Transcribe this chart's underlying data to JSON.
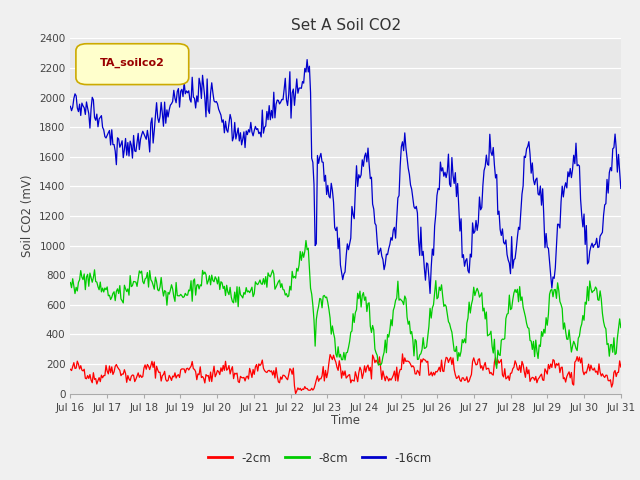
{
  "title": "Set A Soil CO2",
  "ylabel": "Soil CO2 (mV)",
  "xlabel": "Time",
  "legend_label": "TA_soilco2",
  "ylim": [
    0,
    2400
  ],
  "series_labels": [
    "-2cm",
    "-8cm",
    "-16cm"
  ],
  "series_colors": [
    "#ff0000",
    "#00cc00",
    "#0000cc"
  ],
  "fig_facecolor": "#f0f0f0",
  "plot_facecolor": "#e8e8e8",
  "xtick_labels": [
    "Jul 16",
    "Jul 17",
    "Jul 18",
    "Jul 19",
    "Jul 20",
    "Jul 21",
    "Jul 22",
    "Jul 23",
    "Jul 24",
    "Jul 25",
    "Jul 26",
    "Jul 27",
    "Jul 28",
    "Jul 29",
    "Jul 30",
    "Jul 31"
  ],
  "ytick_vals": [
    0,
    200,
    400,
    600,
    800,
    1000,
    1200,
    1400,
    1600,
    1800,
    2000,
    2200,
    2400
  ],
  "num_points": 480
}
